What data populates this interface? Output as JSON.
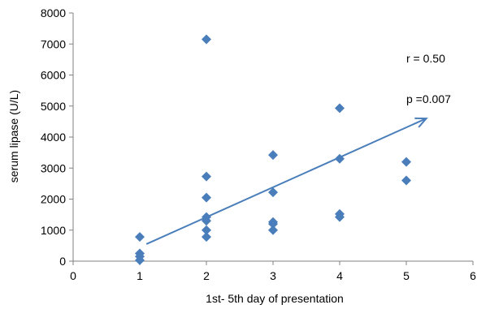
{
  "chart_data": {
    "type": "scatter",
    "xlabel": "1st- 5th  day of presentation",
    "ylabel": "serum lipase (U/L)",
    "xlim": [
      0,
      6
    ],
    "ylim": [
      0,
      8000
    ],
    "xticks": [
      "0",
      "1",
      "2",
      "3",
      "4",
      "5",
      "6"
    ],
    "yticks": [
      "0",
      "1000",
      "2000",
      "3000",
      "4000",
      "5000",
      "6000",
      "7000",
      "8000"
    ],
    "grid": false,
    "marker_color": "#4a7ebb",
    "trend_color": "#4a7ebb",
    "points": [
      {
        "x": 1,
        "y": 780
      },
      {
        "x": 1,
        "y": 250
      },
      {
        "x": 1,
        "y": 150
      },
      {
        "x": 1,
        "y": 30
      },
      {
        "x": 2,
        "y": 7150
      },
      {
        "x": 2,
        "y": 2730
      },
      {
        "x": 2,
        "y": 2050
      },
      {
        "x": 2,
        "y": 1420
      },
      {
        "x": 2,
        "y": 1300
      },
      {
        "x": 2,
        "y": 1000
      },
      {
        "x": 2,
        "y": 780
      },
      {
        "x": 3,
        "y": 3420
      },
      {
        "x": 3,
        "y": 2220
      },
      {
        "x": 3,
        "y": 1260
      },
      {
        "x": 3,
        "y": 1200
      },
      {
        "x": 3,
        "y": 1000
      },
      {
        "x": 4,
        "y": 4930
      },
      {
        "x": 4,
        "y": 3300
      },
      {
        "x": 4,
        "y": 1520
      },
      {
        "x": 4,
        "y": 1420
      },
      {
        "x": 5,
        "y": 3200
      },
      {
        "x": 5,
        "y": 2600
      }
    ],
    "trendline": {
      "x1": 1.1,
      "y1": 550,
      "x2": 5.3,
      "y2": 4600
    },
    "annotations": [
      {
        "text": "r = 0.50",
        "x": 5.0,
        "y": 6400
      },
      {
        "text": "p =0.007",
        "x": 5.0,
        "y": 5100
      }
    ]
  }
}
